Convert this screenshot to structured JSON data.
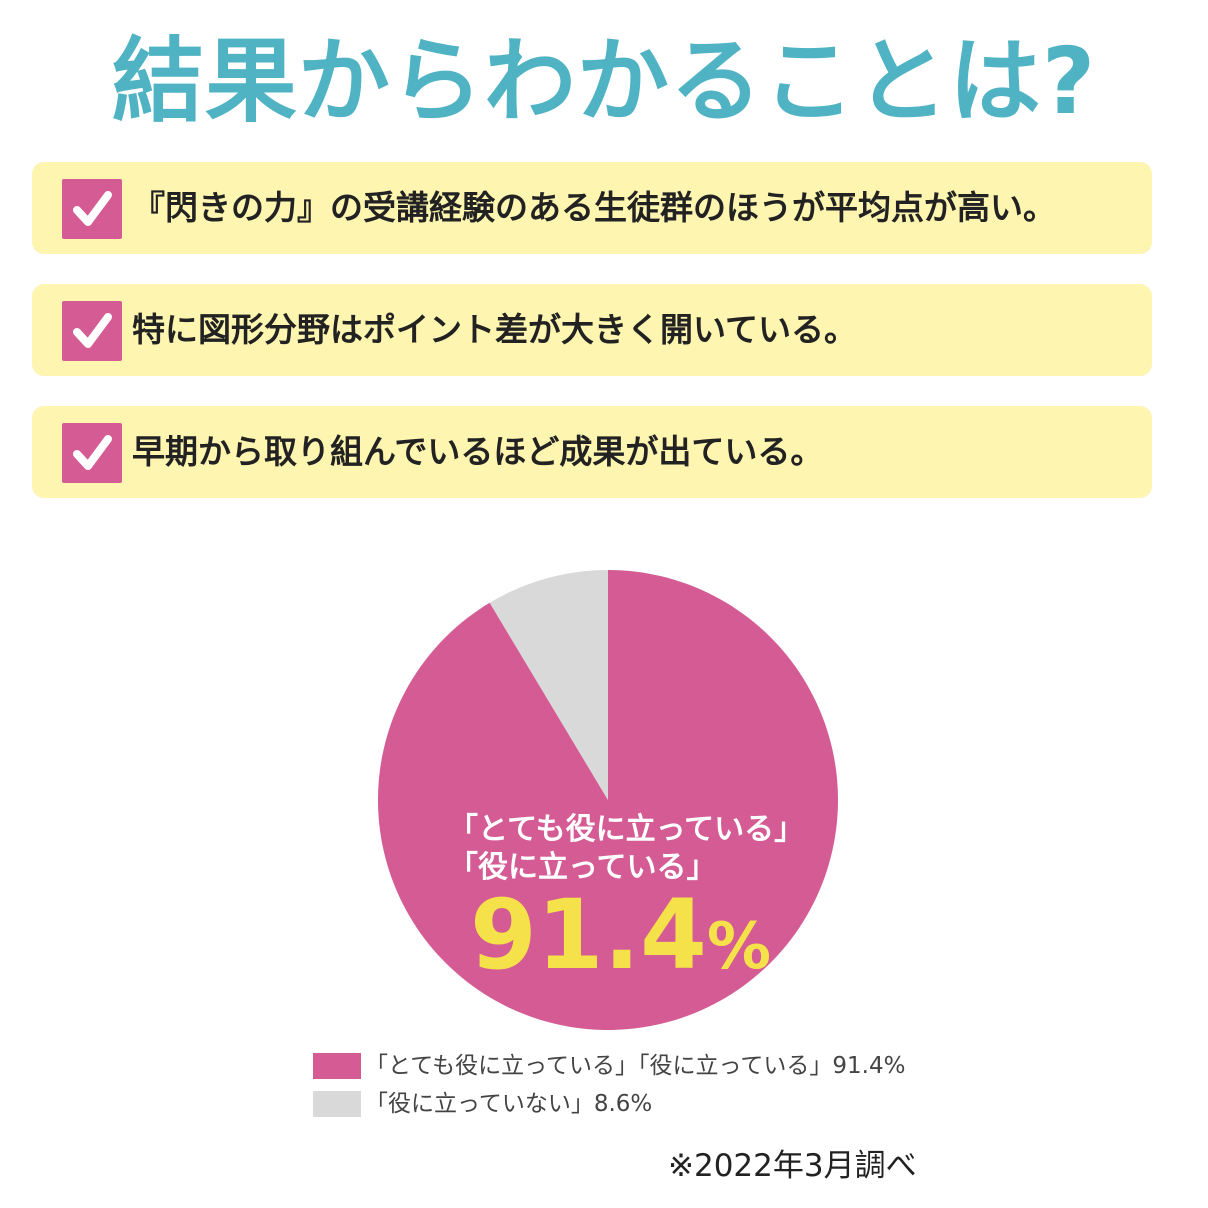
{
  "title": "結果からわかることは?",
  "points": [
    "『閃きの力』の受講経験のある生徒群のほうが平均点が高い。",
    "特に図形分野はポイント差が大きく開いている。",
    "早期から取り組んでいるほど成果が出ている。"
  ],
  "colors": {
    "title": "#4fb3c4",
    "point_bg": "#fdf5b0",
    "check": "#d45b93",
    "useful": "#d45b93",
    "not_useful": "#d9d9d9",
    "highlight": "#f5e24a"
  },
  "icons": {
    "point_marker": "checkmark-icon"
  },
  "chart_data": {
    "type": "pie",
    "labels": [
      "「とても役に立っている」「役に立っている」",
      "「役に立っていない」"
    ],
    "values": [
      91.4,
      8.6
    ],
    "colors": [
      "#d45b93",
      "#d9d9d9"
    ],
    "start": "12 o'clock",
    "direction": "clockwise",
    "inner_label": {
      "line1": "「とても役に立っている」",
      "line2": "「役に立っている」",
      "value": "91.4",
      "unit": "%"
    },
    "legend": [
      {
        "label": "「とても役に立っている」「役に立っている」91.4%",
        "color": "#d45b93"
      },
      {
        "label": "「役に立っていない」8.6%",
        "color": "#d9d9d9"
      }
    ],
    "legend_position": "bottom"
  },
  "footnote": "※2022年3月調べ"
}
